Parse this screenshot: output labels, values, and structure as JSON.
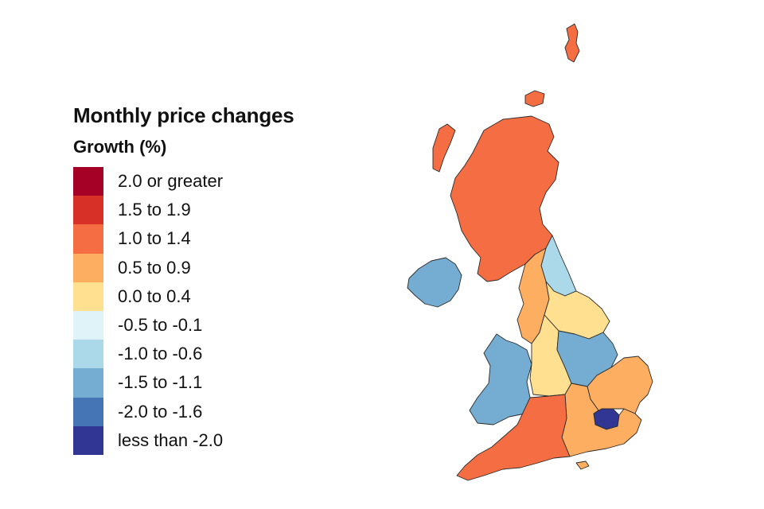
{
  "legend": {
    "title": "Monthly price changes",
    "subtitle": "Growth (%)",
    "items": [
      {
        "label": "2.0 or greater",
        "color": "#a50026"
      },
      {
        "label": "1.5 to 1.9",
        "color": "#d73027"
      },
      {
        "label": "1.0 to 1.4",
        "color": "#f46d43"
      },
      {
        "label": "0.5 to 0.9",
        "color": "#fdae61"
      },
      {
        "label": "0.0 to 0.4",
        "color": "#fee090"
      },
      {
        "label": "-0.5 to -0.1",
        "color": "#e0f3f8"
      },
      {
        "label": "-1.0 to -0.6",
        "color": "#abd9e9"
      },
      {
        "label": "-1.5 to -1.1",
        "color": "#74add1"
      },
      {
        "label": "-2.0 to -1.6",
        "color": "#4575b4"
      },
      {
        "label": "less than -2.0",
        "color": "#313695"
      }
    ]
  },
  "regions": [
    {
      "name": "Scotland",
      "growth_band": "1.0 to 1.4"
    },
    {
      "name": "Northern Ireland",
      "growth_band": "-1.5 to -1.1"
    },
    {
      "name": "North East",
      "growth_band": "-1.0 to -0.6"
    },
    {
      "name": "North West",
      "growth_band": "0.5 to 0.9"
    },
    {
      "name": "Yorkshire and The Humber",
      "growth_band": "0.0 to 0.4"
    },
    {
      "name": "Wales",
      "growth_band": "-1.5 to -1.1"
    },
    {
      "name": "West Midlands",
      "growth_band": "0.0 to 0.4"
    },
    {
      "name": "East Midlands",
      "growth_band": "-1.5 to -1.1"
    },
    {
      "name": "East of England",
      "growth_band": "0.5 to 0.9"
    },
    {
      "name": "London",
      "growth_band": "less than -2.0"
    },
    {
      "name": "South East",
      "growth_band": "0.5 to 0.9"
    },
    {
      "name": "South West",
      "growth_band": "1.0 to 1.4"
    }
  ]
}
